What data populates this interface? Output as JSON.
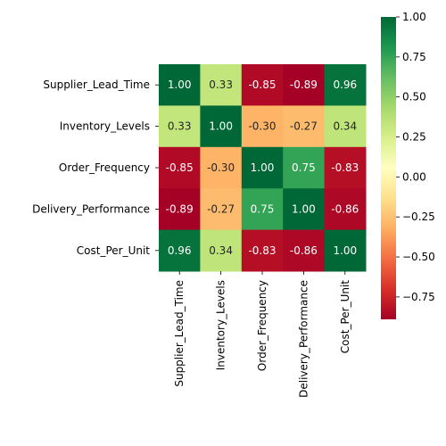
{
  "chart_data": {
    "type": "heatmap",
    "title": "",
    "xlabel": "",
    "ylabel": "",
    "categories": [
      "Supplier_Lead_Time",
      "Inventory_Levels",
      "Order_Frequency",
      "Delivery_Performance",
      "Cost_Per_Unit"
    ],
    "rows": [
      "Supplier_Lead_Time",
      "Inventory_Levels",
      "Order_Frequency",
      "Delivery_Performance",
      "Cost_Per_Unit"
    ],
    "values": [
      [
        1.0,
        0.33,
        -0.85,
        -0.89,
        0.96
      ],
      [
        0.33,
        1.0,
        -0.3,
        -0.27,
        0.34
      ],
      [
        -0.85,
        -0.3,
        1.0,
        0.75,
        -0.83
      ],
      [
        -0.89,
        -0.27,
        0.75,
        1.0,
        -0.86
      ],
      [
        0.96,
        0.34,
        -0.83,
        -0.86,
        1.0
      ]
    ],
    "value_labels": [
      [
        "1.00",
        "0.33",
        "-0.85",
        "-0.89",
        "0.96"
      ],
      [
        "0.33",
        "1.00",
        "-0.30",
        "-0.27",
        "0.34"
      ],
      [
        "-0.85",
        "-0.30",
        "1.00",
        "0.75",
        "-0.83"
      ],
      [
        "-0.89",
        "-0.27",
        "0.75",
        "1.00",
        "-0.86"
      ],
      [
        "0.96",
        "0.34",
        "-0.83",
        "-0.86",
        "1.00"
      ]
    ],
    "colormap": "RdYlGn",
    "vmin": -0.89,
    "vmax": 1.0,
    "colorbar": {
      "ticks": [
        1.0,
        0.75,
        0.5,
        0.25,
        0.0,
        -0.25,
        -0.5,
        -0.75
      ],
      "tick_labels": [
        "1.00",
        "0.75",
        "0.50",
        "0.25",
        "0.00",
        "−0.25",
        "−0.50",
        "−0.75"
      ],
      "placement": "right"
    },
    "grid": false,
    "annotated": true
  }
}
